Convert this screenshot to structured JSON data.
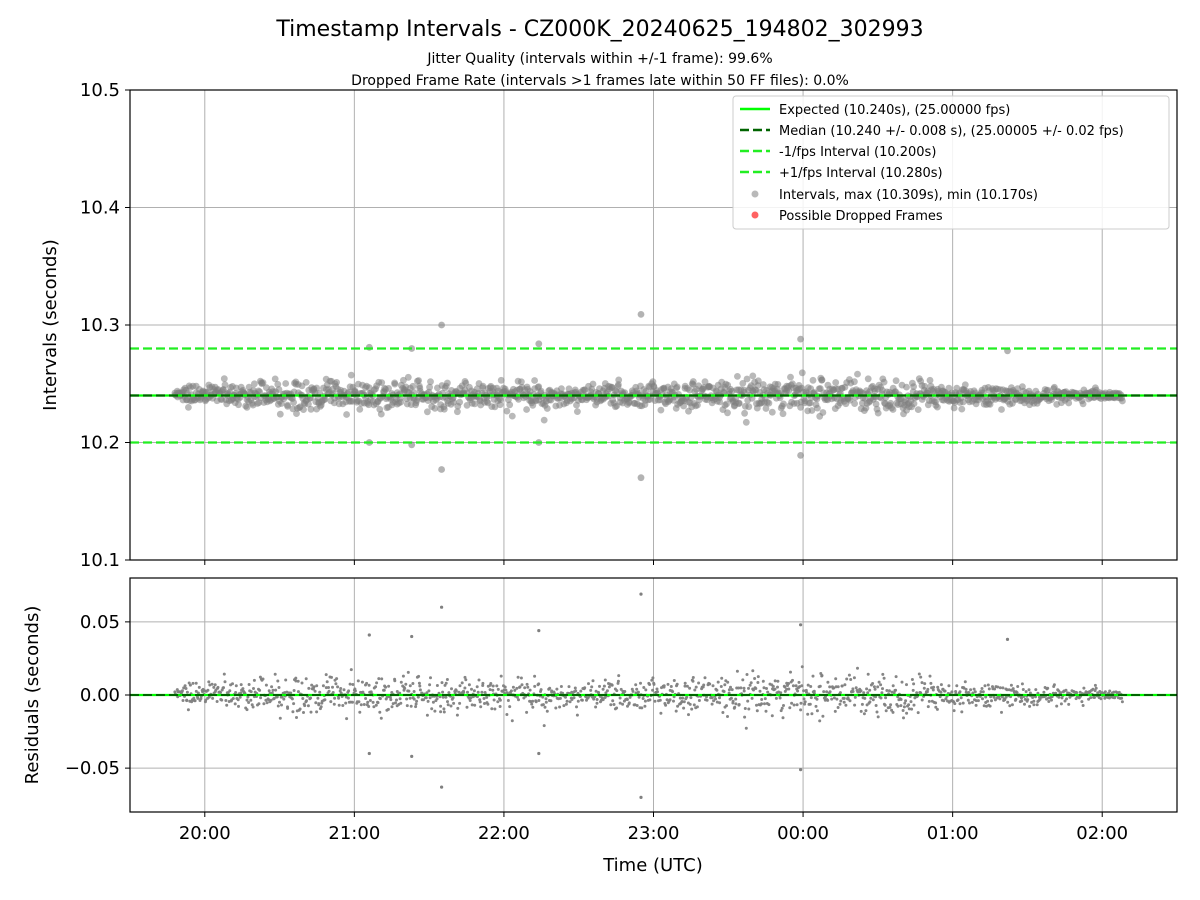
{
  "colors": {
    "expected": "#00ff00",
    "median": "#006400",
    "fps_bounds": "#22ee22",
    "points": "#808080",
    "dropped": "#ff3b3b",
    "grid": "#b0b0b0"
  },
  "chart_data": [
    {
      "type": "scatter",
      "title": "Timestamp Intervals - CZ000K_20240625_194802_302993",
      "subtitle_1": "Jitter Quality (intervals within +/-1 frame): 99.6%",
      "subtitle_2": "Dropped Frame Rate (intervals >1 frames late within 50 FF files): 0.0%",
      "xlabel": "",
      "ylabel": "Intervals (seconds)",
      "xlim": [
        "19:30",
        "02:30"
      ],
      "ylim": [
        10.1,
        10.5
      ],
      "yticks": [
        "10.1",
        "10.2",
        "10.3",
        "10.4",
        "10.5"
      ],
      "xticks": [
        "20:00",
        "21:00",
        "22:00",
        "23:00",
        "00:00",
        "01:00",
        "02:00"
      ],
      "grid": true,
      "legend_position": "top-right",
      "data_range": {
        "x_start": "19:48",
        "x_end": "02:08"
      },
      "lines": [
        {
          "name": "Expected (10.240s), (25.00000 fps)",
          "y": 10.24,
          "style": "solid"
        },
        {
          "name": "Median (10.240 +/- 0.008 s), (25.00005 +/- 0.02 fps)",
          "y": 10.24,
          "style": "dashed"
        },
        {
          "name": "-1/fps Interval (10.200s)",
          "y": 10.2,
          "style": "dashed"
        },
        {
          "name": "+1/fps Interval (10.280s)",
          "y": 10.28,
          "style": "dashed"
        }
      ],
      "series": [
        {
          "name": "Intervals, max (10.309s), min (10.170s)",
          "max": 10.309,
          "min": 10.17,
          "center": 10.24,
          "spread_sd": 0.008
        },
        {
          "name": "Possible Dropped Frames",
          "count": 0
        }
      ],
      "outliers": [
        {
          "x": "21:35",
          "y": 10.3
        },
        {
          "x": "22:55",
          "y": 10.309
        },
        {
          "x": "21:35",
          "y": 10.177
        },
        {
          "x": "22:55",
          "y": 10.17
        },
        {
          "x": "23:59",
          "y": 10.288
        },
        {
          "x": "23:59",
          "y": 10.189
        },
        {
          "x": "21:06",
          "y": 10.281
        },
        {
          "x": "21:06",
          "y": 10.2
        },
        {
          "x": "21:23",
          "y": 10.198
        },
        {
          "x": "22:14",
          "y": 10.284
        },
        {
          "x": "22:14",
          "y": 10.2
        },
        {
          "x": "21:23",
          "y": 10.28
        },
        {
          "x": "01:22",
          "y": 10.278
        }
      ]
    },
    {
      "type": "scatter",
      "title": "",
      "xlabel": "Time (UTC)",
      "ylabel": "Residuals (seconds)",
      "xlim": [
        "19:30",
        "02:30"
      ],
      "ylim": [
        -0.08,
        0.08
      ],
      "yticks": [
        "−0.05",
        "0.00",
        "0.05"
      ],
      "ytick_values": [
        -0.05,
        0.0,
        0.05
      ],
      "xticks": [
        "20:00",
        "21:00",
        "22:00",
        "23:00",
        "00:00",
        "01:00",
        "02:00"
      ],
      "grid": true,
      "zero_line": 0.0,
      "residual_range": {
        "max": 0.069,
        "min": -0.07
      }
    }
  ]
}
